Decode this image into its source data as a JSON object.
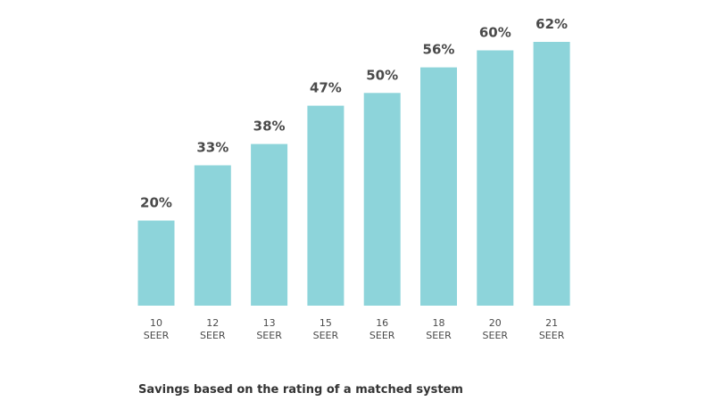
{
  "chart_data": {
    "type": "bar",
    "categories": [
      "10 SEER",
      "12 SEER",
      "13 SEER",
      "15 SEER",
      "16 SEER",
      "18 SEER",
      "20 SEER",
      "21 SEER"
    ],
    "category_lines": [
      [
        "10",
        "SEER"
      ],
      [
        "12",
        "SEER"
      ],
      [
        "13",
        "SEER"
      ],
      [
        "15",
        "SEER"
      ],
      [
        "16",
        "SEER"
      ],
      [
        "18",
        "SEER"
      ],
      [
        "20",
        "SEER"
      ],
      [
        "21",
        "SEER"
      ]
    ],
    "values": [
      20,
      33,
      38,
      47,
      50,
      56,
      60,
      62
    ],
    "data_labels": [
      "20%",
      "33%",
      "38%",
      "47%",
      "50%",
      "56%",
      "60%",
      "62%"
    ],
    "unit": "%",
    "ylim": [
      0,
      62
    ],
    "grid": false,
    "legend": "none",
    "bar_color": "#8dd4da",
    "text_color": "#4a4a4a"
  },
  "caption": "Savings based on the rating of a matched system"
}
